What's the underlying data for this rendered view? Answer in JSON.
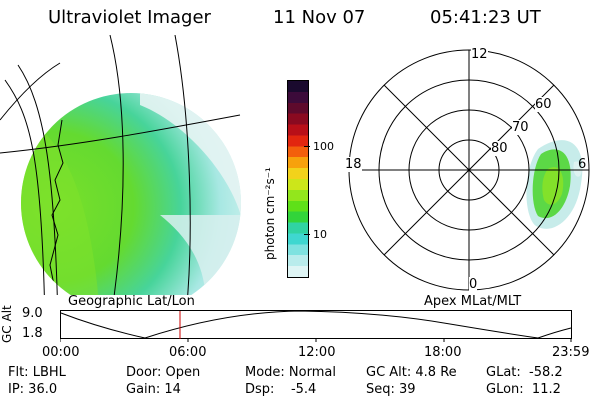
{
  "header": {
    "instrument": "Ultraviolet Imager",
    "date": "11 Nov 07",
    "time": "05:41:23 UT"
  },
  "colorbar": {
    "unit_label": "photon cm⁻²s⁻¹",
    "tick_labels": [
      "100",
      "10"
    ],
    "colors_top_to_bottom": [
      "#1a0a2e",
      "#3c0b3a",
      "#5e0a2c",
      "#8a0a20",
      "#b80f18",
      "#e2260f",
      "#f35f0c",
      "#f7a10c",
      "#f2d21b",
      "#cce61a",
      "#93e61c",
      "#5fe018",
      "#32d43a",
      "#30d3a2",
      "#3fd7d0",
      "#7fe2e0",
      "#b9ecec",
      "#dff5f5"
    ]
  },
  "left_panel": {
    "label": "Geographic Lat/Lon"
  },
  "right_panel": {
    "label": "Apex MLat/MLT",
    "mlt_labels": [
      "12",
      "18",
      "6",
      "0"
    ],
    "mlat_labels": [
      "60",
      "70",
      "80"
    ]
  },
  "altitude_plot": {
    "ylabel": "GC Alt",
    "y_ticks": [
      "9.0",
      "1.8"
    ],
    "x_ticks": [
      "00:00",
      "06:00",
      "12:00",
      "18:00",
      "23:59"
    ],
    "marker_time": "05:41"
  },
  "info": {
    "flt": "Flt: LBHL",
    "ip": "IP: 36.0",
    "door": "Door: Open",
    "gain": "Gain: 14",
    "mode": "Mode: Normal",
    "dsp": "Dsp:    -5.4",
    "gc_alt": "GC Alt: 4.8 Re",
    "seq": "Seq: 39",
    "glat": "GLat:  -58.2",
    "glon": "GLon:  11.2"
  }
}
